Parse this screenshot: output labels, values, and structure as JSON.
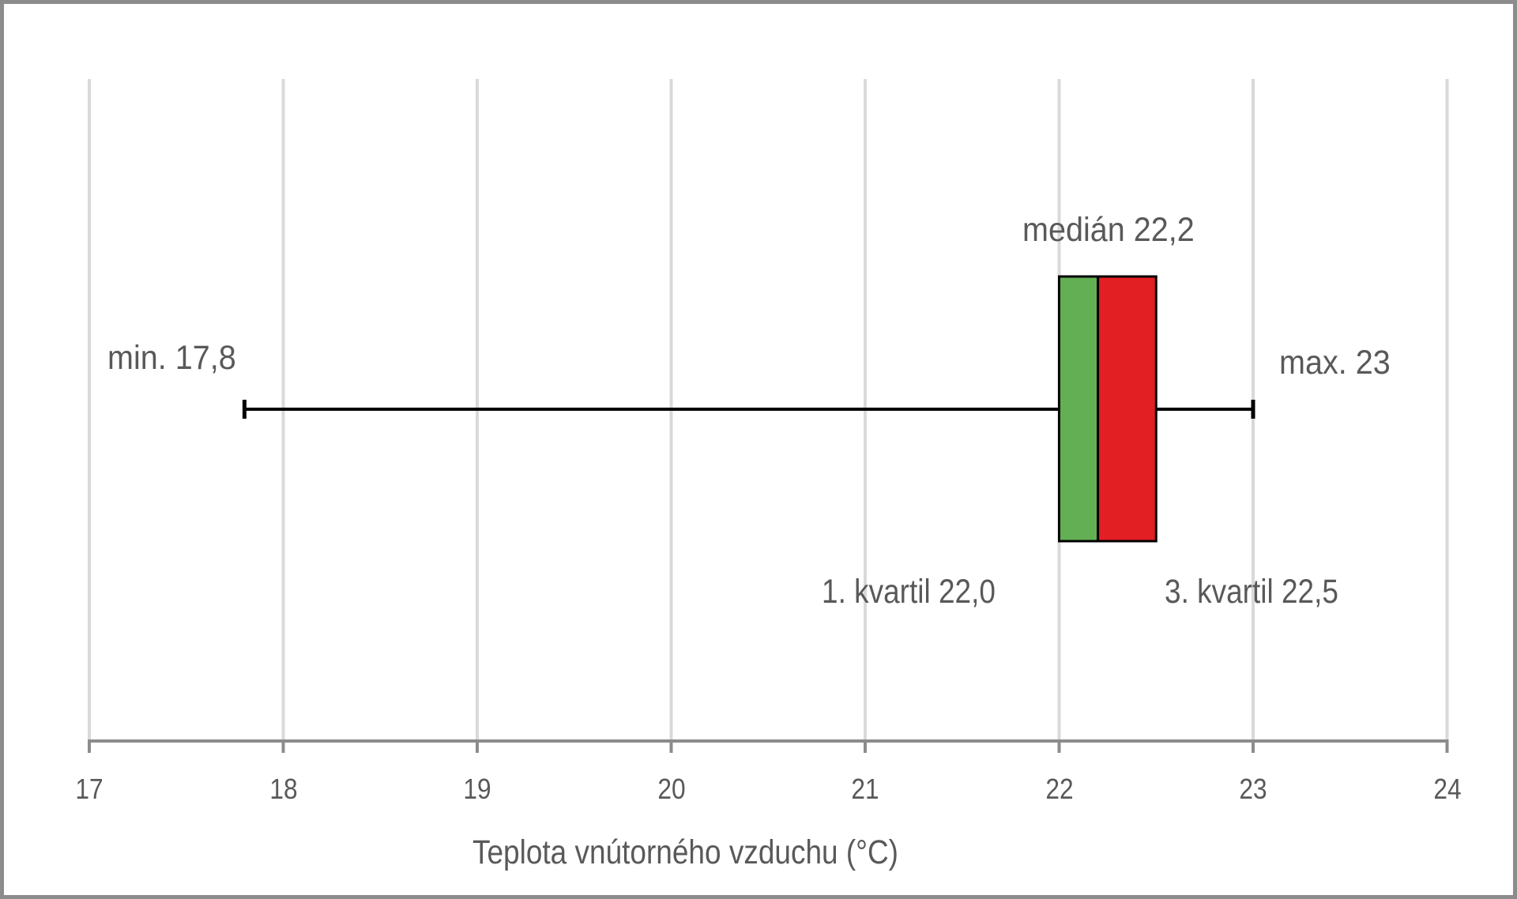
{
  "chart_data": {
    "type": "boxplot",
    "orientation": "horizontal",
    "title": "",
    "xlabel": "Teplota vnútorného vzduchu (°C)",
    "ylabel": "",
    "xlim": [
      17,
      24
    ],
    "xticks": [
      "17",
      "18",
      "19",
      "20",
      "21",
      "22",
      "23",
      "24"
    ],
    "grid": {
      "vertical": true,
      "horizontal": false
    },
    "legend": null,
    "values": {
      "min": 17.8,
      "q1": 22.0,
      "median": 22.2,
      "q3": 22.5,
      "max": 23.0
    },
    "colors": {
      "lower_box": "#63b054",
      "upper_box": "#e21f23",
      "whisker": "#000000",
      "gridline": "#d9d9d9",
      "axis": "#8c8c8c",
      "text": "#595959"
    },
    "annotations": {
      "min": "min. 17,8",
      "median": "medián 22,2",
      "max": "max. 23",
      "q1": "1. kvartil 22,0",
      "q3": "3. kvartil 22,5"
    }
  }
}
